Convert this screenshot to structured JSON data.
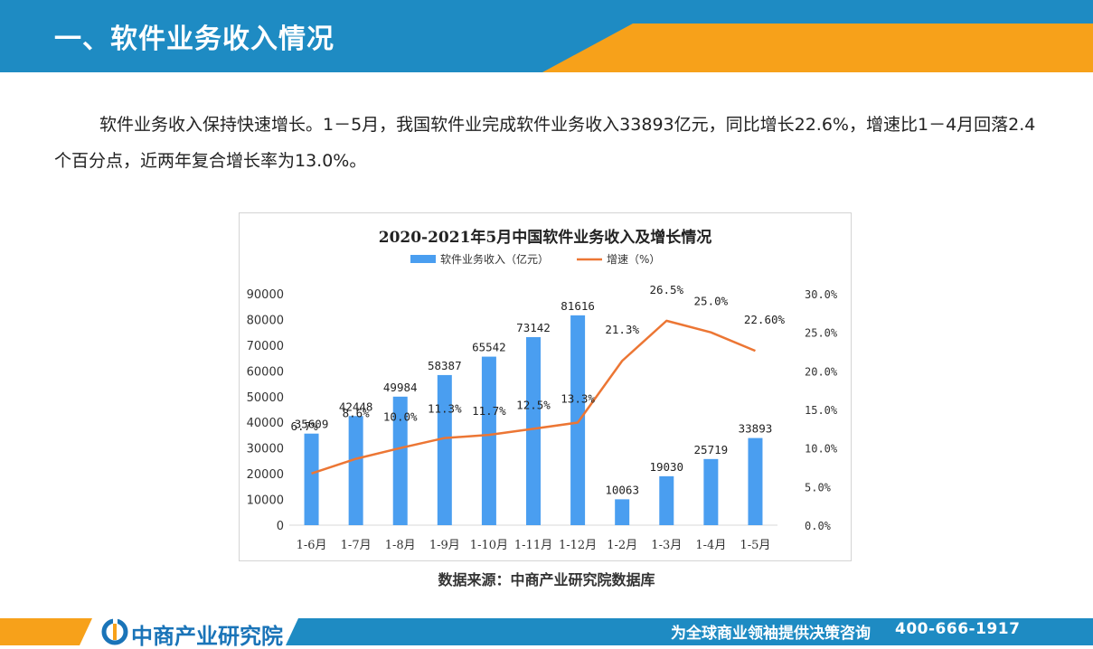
{
  "header": {
    "title": "一、软件业务收入情况"
  },
  "intro": {
    "text": "软件业务收入保持快速增长。1－5月，我国软件业完成软件业务收入33893亿元，同比增长22.6%，增速比1－4月回落2.4个百分点，近两年复合增长率为13.0%。"
  },
  "chart_data": {
    "type": "bar",
    "title": "2020-2021年5月中国软件业务收入及增长情况",
    "categories": [
      "1-6月",
      "1-7月",
      "1-8月",
      "1-9月",
      "1-10月",
      "1-11月",
      "1-12月",
      "1-2月",
      "1-3月",
      "1-4月",
      "1-5月"
    ],
    "series": [
      {
        "name": "软件业务收入（亿元）",
        "kind": "bar",
        "axis": "left",
        "values": [
          35609,
          42448,
          49984,
          58387,
          65542,
          73142,
          81616,
          10063,
          19030,
          25719,
          33893
        ],
        "labels": [
          "35609",
          "42448",
          "49984",
          "58387",
          "65542",
          "73142",
          "81616",
          "10063",
          "19030",
          "25719",
          "33893"
        ]
      },
      {
        "name": "增速（%）",
        "kind": "line",
        "axis": "right",
        "values": [
          6.7,
          8.6,
          10.0,
          11.3,
          11.7,
          12.5,
          13.3,
          21.3,
          26.5,
          25.0,
          22.6
        ],
        "labels": [
          "6.7%",
          "8.6%",
          "10.0%",
          "11.3%",
          "11.7%",
          "12.5%",
          "13.3%",
          "21.3%",
          "26.5%",
          "25.0%",
          "22.60%"
        ]
      }
    ],
    "y_left": {
      "min": 0,
      "max": 90000,
      "ticks": [
        "0",
        "10000",
        "20000",
        "30000",
        "40000",
        "50000",
        "60000",
        "70000",
        "80000",
        "90000"
      ]
    },
    "y_right": {
      "min": 0,
      "max": 30,
      "ticks": [
        "0.0%",
        "5.0%",
        "10.0%",
        "15.0%",
        "20.0%",
        "25.0%",
        "30.0%"
      ]
    },
    "legend_position": "top",
    "grid": false,
    "colors": {
      "bar": "#4a9ef0",
      "line": "#ec7634"
    }
  },
  "source": {
    "text": "数据来源：中商产业研究院数据库"
  },
  "footer": {
    "brand": "中商产业研究院",
    "slogan": "为全球商业领袖提供决策咨询",
    "hotline": "400-666-1917"
  },
  "colors": {
    "header_blue": "#1e8bc3",
    "accent_orange": "#f7a11a"
  }
}
